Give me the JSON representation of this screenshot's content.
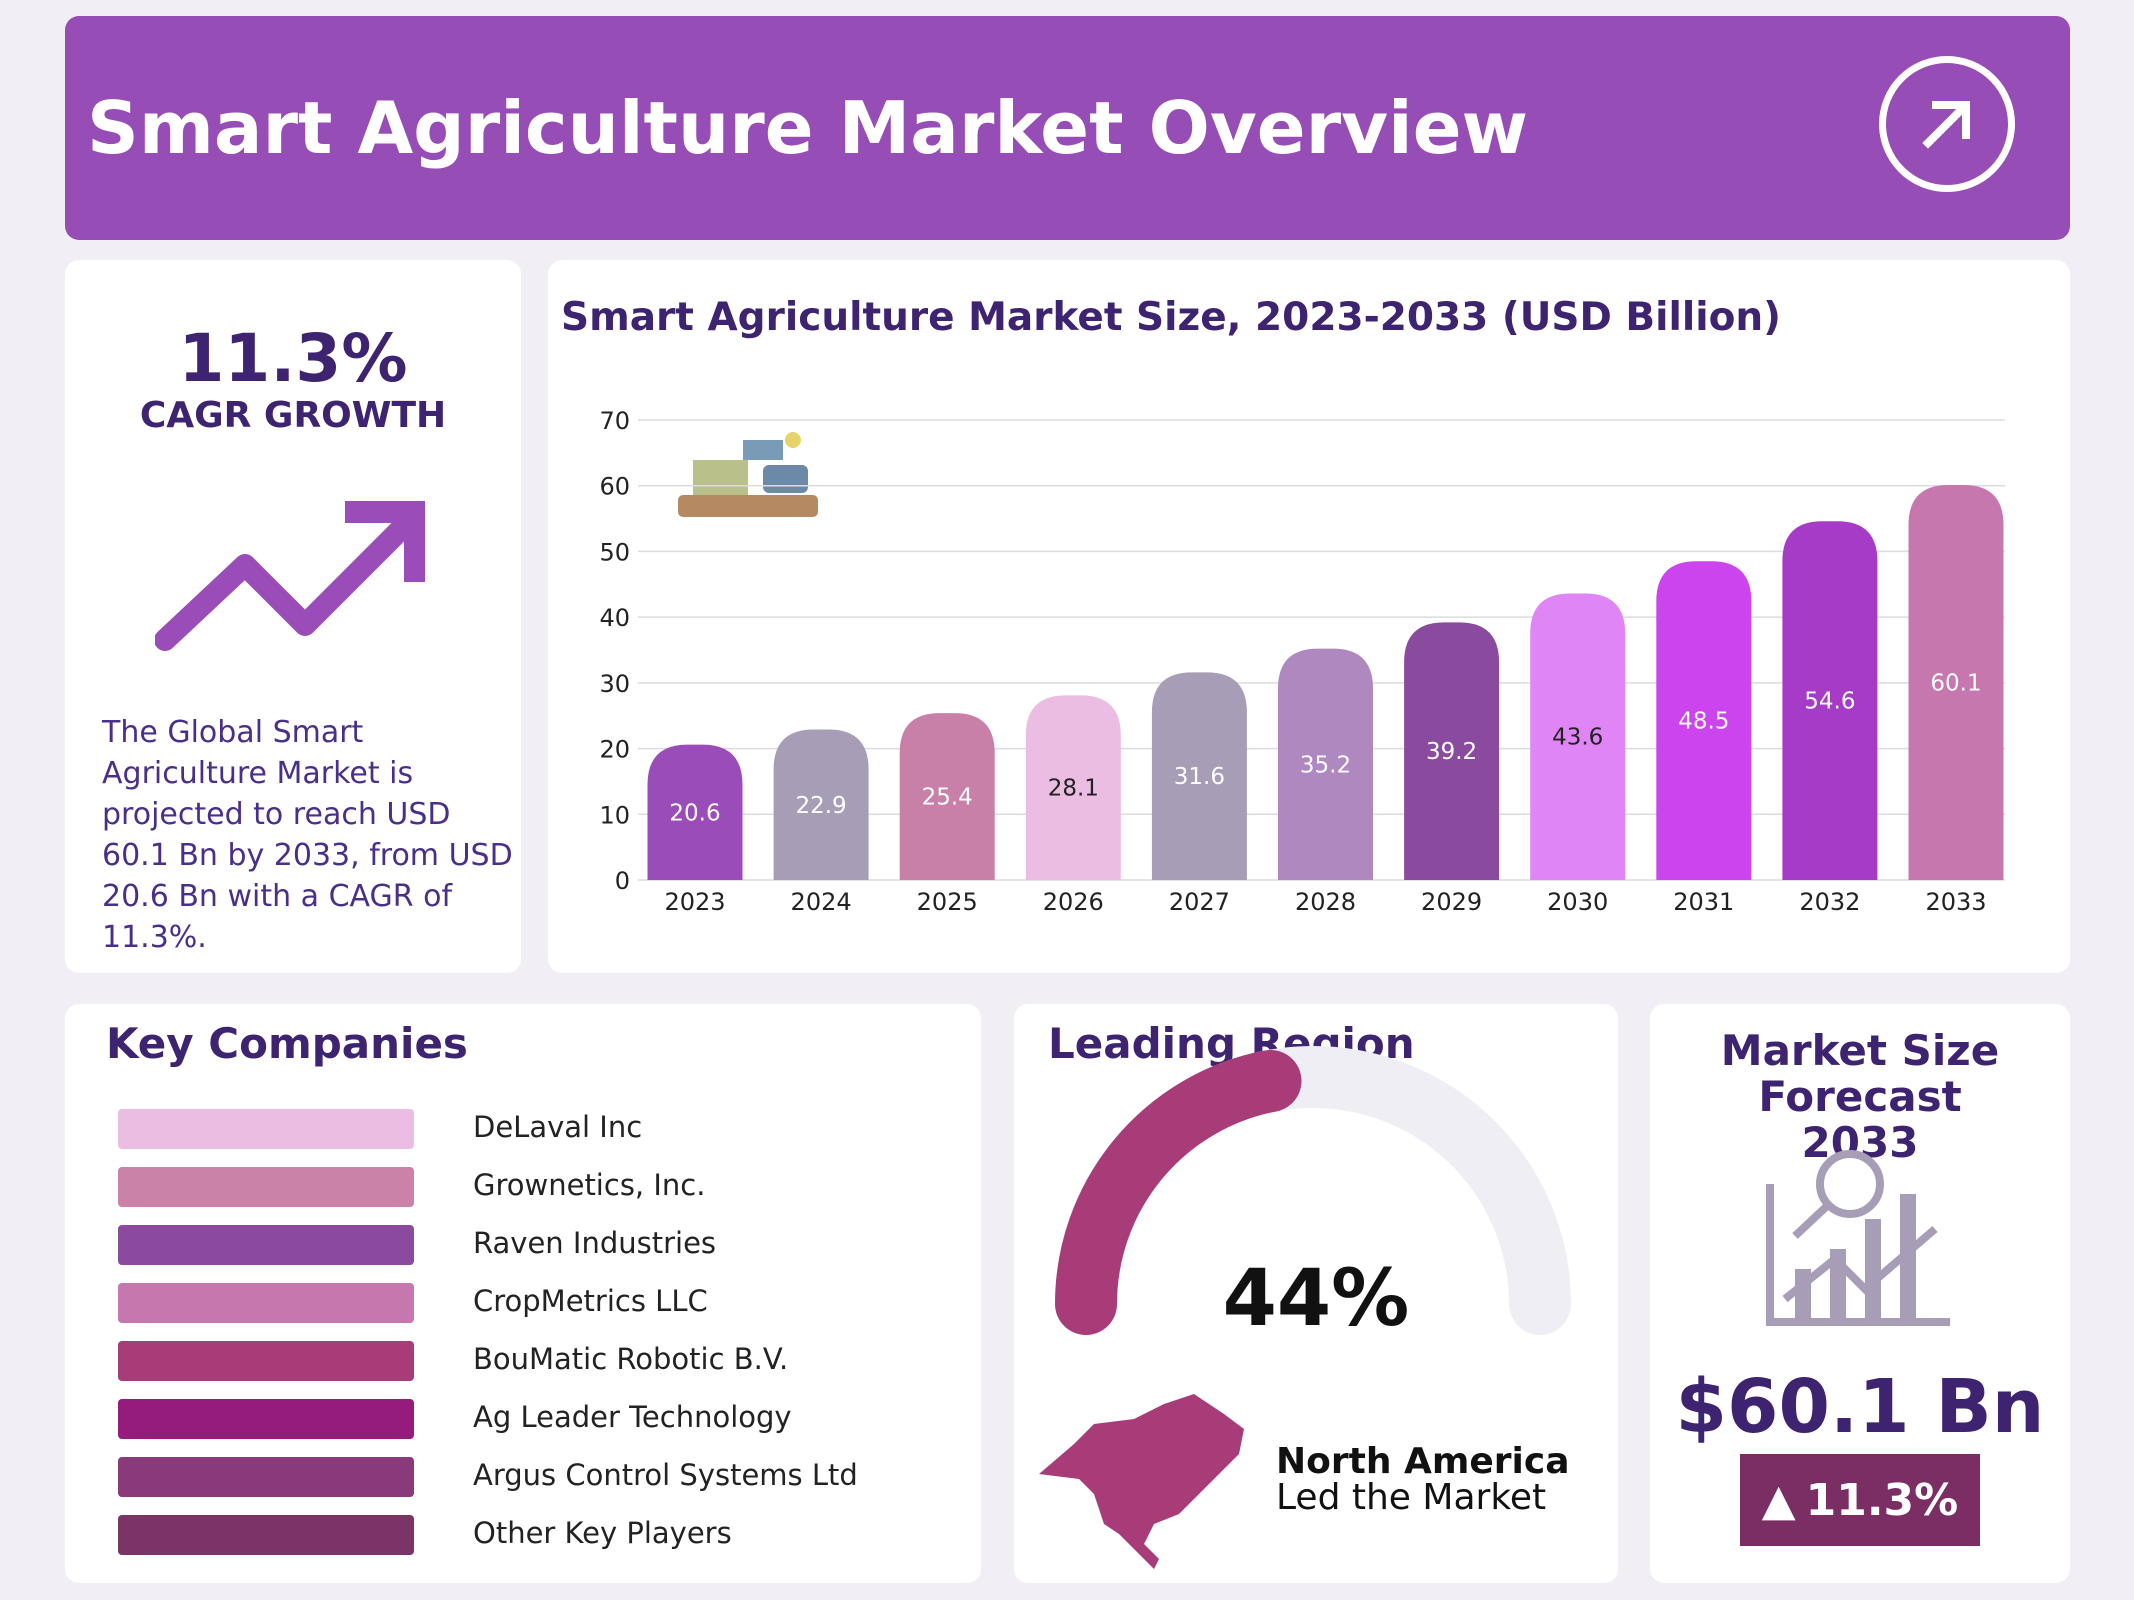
{
  "header": {
    "title": "Smart Agriculture Market Overview",
    "icon": "arrow-up-right-circle-icon"
  },
  "cagr": {
    "value": "11.3%",
    "label": "CAGR GROWTH",
    "icon": "trend-up-arrow-icon",
    "description": "The Global Smart Agriculture Market is projected to reach USD 60.1 Bn by 2033, from USD 20.6 Bn with a CAGR of 11.3%."
  },
  "chart_data": {
    "type": "bar",
    "title": "Smart Agriculture Market Size, 2023-2033 (USD Billion)",
    "categories": [
      "2023",
      "2024",
      "2025",
      "2026",
      "2027",
      "2028",
      "2029",
      "2030",
      "2031",
      "2032",
      "2033"
    ],
    "values": [
      20.6,
      22.9,
      25.4,
      28.1,
      31.6,
      35.2,
      39.2,
      43.6,
      48.5,
      54.6,
      60.1
    ],
    "ylim": [
      0,
      70
    ],
    "yticks": [
      0,
      10,
      20,
      30,
      40,
      50,
      60,
      70
    ],
    "grid": true,
    "colors": [
      "#9a4cb8",
      "#a89db6",
      "#c880a9",
      "#ecbde2",
      "#a89db6",
      "#b088c0",
      "#8a4a9e",
      "#e085f5",
      "#cc44ee",
      "#a63bc7",
      "#c677ae"
    ]
  },
  "companies": {
    "title": "Key Companies",
    "items": [
      {
        "name": "DeLaval Inc",
        "color": "#ecbde3"
      },
      {
        "name": "Grownetics, Inc.",
        "color": "#cb82a9"
      },
      {
        "name": "Raven Industries",
        "color": "#8b4a9e"
      },
      {
        "name": "CropMetrics LLC",
        "color": "#c677ae"
      },
      {
        "name": "BouMatic Robotic B.V.",
        "color": "#a83c78"
      },
      {
        "name": "Ag Leader Technology",
        "color": "#951b7c"
      },
      {
        "name": "Argus Control Systems Ltd",
        "color": "#8a3a7a"
      },
      {
        "name": "Other Key Players",
        "color": "#7a3466"
      }
    ]
  },
  "region": {
    "title": "Leading Region",
    "percent": "44%",
    "share": 44,
    "name": "North America",
    "caption": "Led the Market",
    "color": "#a83c78",
    "icon": "north-america-map-icon"
  },
  "forecast": {
    "title": "Market Size Forecast 2033",
    "value": "$60.1 Bn",
    "growth": "11.3%",
    "icon": "chart-magnifier-icon"
  }
}
